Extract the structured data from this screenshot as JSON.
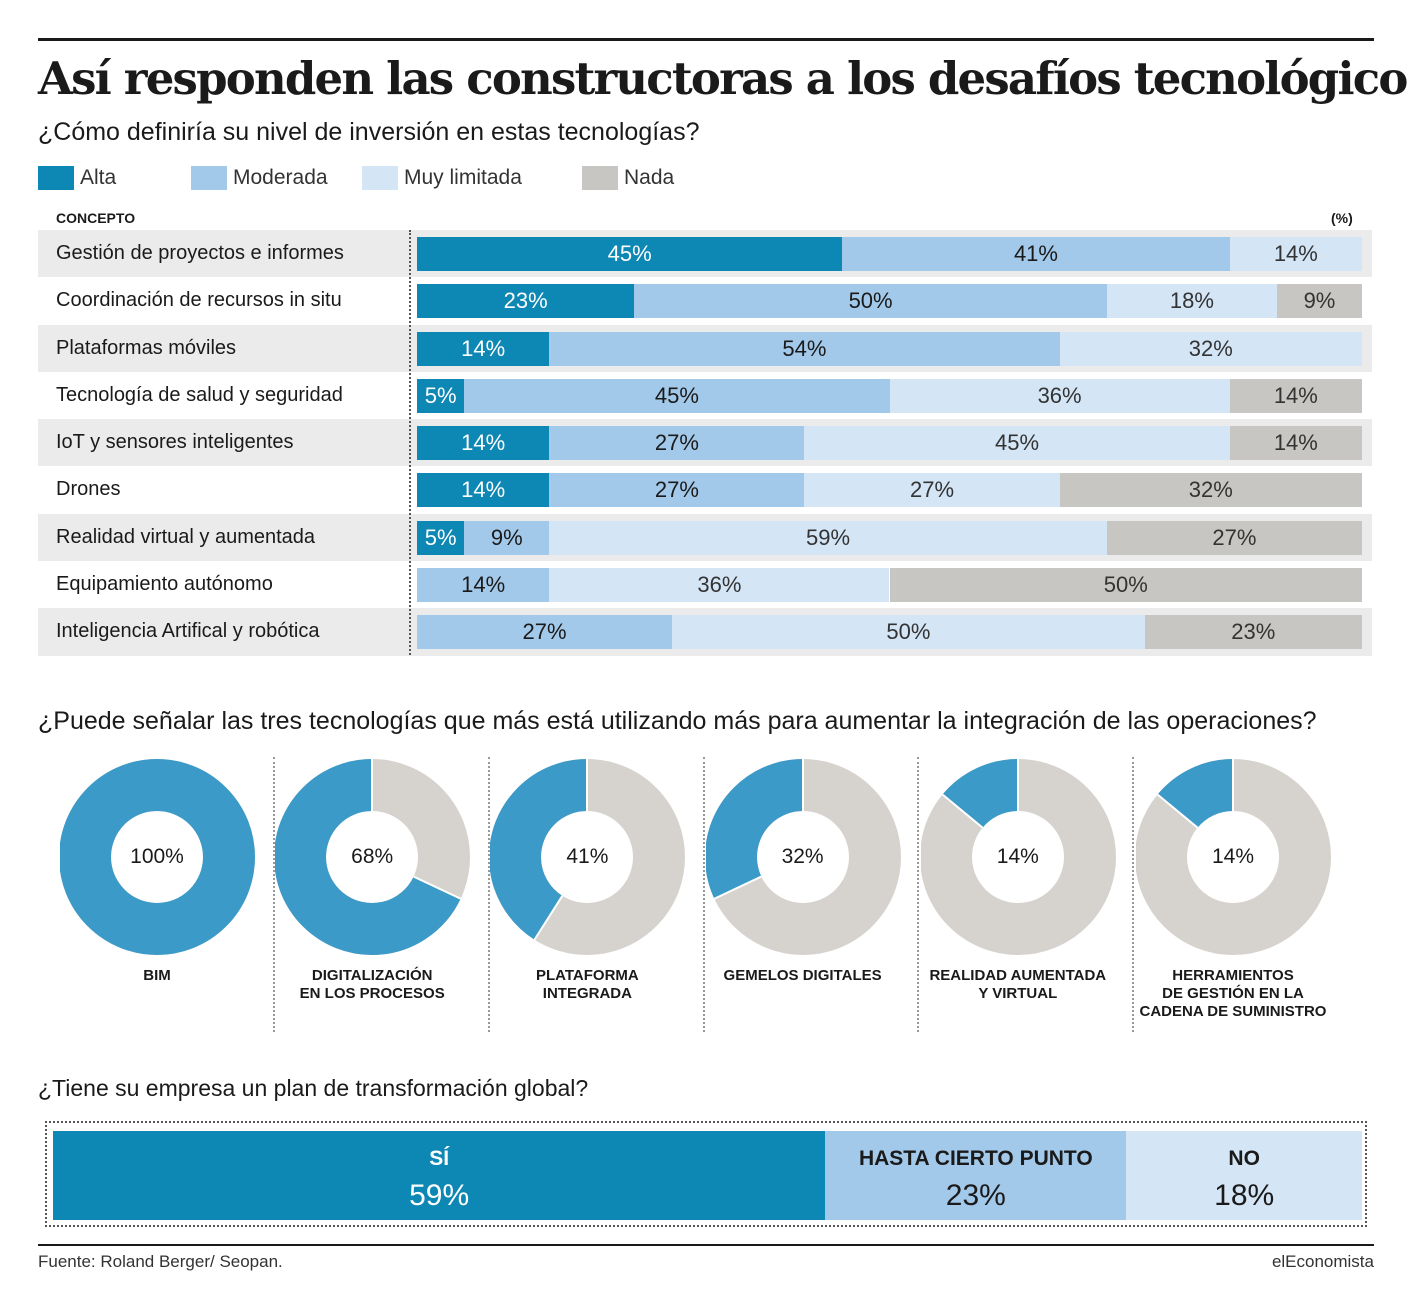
{
  "title": "Así responden las constructoras a los desafíos tecnológicos",
  "colors": {
    "alta": "#0d87b3",
    "moderada": "#a3c9ea",
    "muy_limitada": "#d4e5f6",
    "nada": "#c8c6c2",
    "donut_value": "#3b9ac7",
    "donut_rest": "#d6d3cf",
    "row_shade": "#ebebeb"
  },
  "section1": {
    "question": "¿Cómo definiría su nivel de inversión en estas tecnologías?",
    "legend": [
      "Alta",
      "Moderada",
      "Muy limitada",
      "Nada"
    ],
    "col_head_left": "CONCEPTO",
    "col_head_right": "(%)"
  },
  "section2": {
    "question": "¿Puede señalar las tres tecnologías que más está utilizando más para aumentar la integración de las operaciones?"
  },
  "section3": {
    "question": "¿Tiene su empresa un plan de transformación global?"
  },
  "chart_data": [
    {
      "type": "bar",
      "stacked": true,
      "orientation": "horizontal",
      "ylabel": "CONCEPTO",
      "unit": "(%)",
      "categories": [
        "Gestión de proyectos e informes",
        "Coordinación de recursos in situ",
        "Plataformas móviles",
        "Tecnología de salud y seguridad",
        "IoT y sensores inteligentes",
        "Drones",
        "Realidad virtual y aumentada",
        "Equipamiento autónomo",
        "Inteligencia Artifical y robótica"
      ],
      "series": [
        {
          "name": "Alta",
          "values": [
            45,
            23,
            14,
            5,
            14,
            14,
            5,
            0,
            0
          ]
        },
        {
          "name": "Moderada",
          "values": [
            41,
            50,
            54,
            45,
            27,
            27,
            9,
            14,
            27
          ]
        },
        {
          "name": "Muy limitada",
          "values": [
            14,
            18,
            32,
            36,
            45,
            27,
            59,
            36,
            50
          ]
        },
        {
          "name": "Nada",
          "values": [
            0,
            9,
            0,
            14,
            14,
            32,
            27,
            50,
            23
          ]
        }
      ],
      "legend": "top-left"
    },
    {
      "type": "pie",
      "donut": true,
      "items": [
        {
          "label": "BIM",
          "value": 100,
          "display": "100%"
        },
        {
          "label": "DIGITALIZACIÓN\nEN LOS PROCESOS",
          "value": 68,
          "display": "68%"
        },
        {
          "label": "PLATAFORMA\nINTEGRADA",
          "value": 41,
          "display": "41%"
        },
        {
          "label": "GEMELOS DIGITALES",
          "value": 32,
          "display": "32%"
        },
        {
          "label": "REALIDAD AUMENTADA\nY VIRTUAL",
          "value": 14,
          "display": "14%"
        },
        {
          "label": "HERRAMIENTOS\nDE GESTIÓN EN LA\nCADENA DE SUMINISTRO",
          "value": 14,
          "display": "14%"
        }
      ]
    },
    {
      "type": "bar",
      "stacked": true,
      "orientation": "horizontal",
      "categories": [
        "SÍ",
        "HASTA CIERTO PUNTO",
        "NO"
      ],
      "values": [
        59,
        23,
        18
      ],
      "display": [
        "59%",
        "23%",
        "18%"
      ]
    }
  ],
  "footer": {
    "source": "Fuente: Roland Berger/ Seopan.",
    "brand": "elEconomista"
  }
}
